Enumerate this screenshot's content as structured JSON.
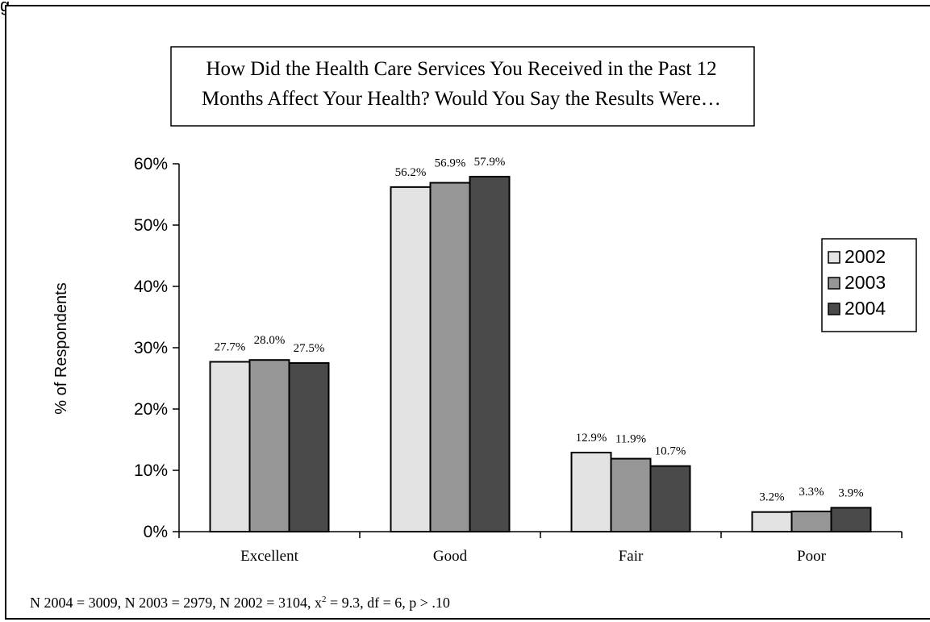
{
  "header_fragment": "g",
  "chart_data": {
    "type": "bar",
    "title": "How Did the Health Care Services You Received in the Past 12 Months Affect Your Health?  Would You Say the Results Were…",
    "title_lines": [
      "How Did the Health Care Services You Received in the Past 12",
      "Months Affect Your Health?  Would You Say the Results Were…"
    ],
    "xlabel": "",
    "ylabel": "% of Respondents",
    "ylim": [
      0,
      60
    ],
    "y_ticks": [
      0,
      10,
      20,
      30,
      40,
      50,
      60
    ],
    "y_tick_labels": [
      "0%",
      "10%",
      "20%",
      "30%",
      "40%",
      "50%",
      "60%"
    ],
    "categories": [
      "Excellent",
      "Good",
      "Fair",
      "Poor"
    ],
    "series": [
      {
        "name": "2002",
        "color": "#e3e3e3",
        "values": [
          27.7,
          56.2,
          12.9,
          3.2
        ],
        "labels": [
          "27.7%",
          "56.2%",
          "12.9%",
          "3.2%"
        ]
      },
      {
        "name": "2003",
        "color": "#969696",
        "values": [
          28.0,
          56.9,
          11.9,
          3.3
        ],
        "labels": [
          "28.0%",
          "56.9%",
          "11.9%",
          "3.3%"
        ]
      },
      {
        "name": "2004",
        "color": "#4a4a4a",
        "values": [
          27.5,
          57.9,
          10.7,
          3.9
        ],
        "labels": [
          "27.5%",
          "57.9%",
          "10.7%",
          "3.9%"
        ]
      }
    ],
    "grid": false,
    "legend_position": "right",
    "footnote_parts": [
      "N 2004 = 3009, N 2003 = 2979, N 2002 = 3104, x",
      "2",
      " = 9.3, df = 6, p > .10"
    ]
  }
}
